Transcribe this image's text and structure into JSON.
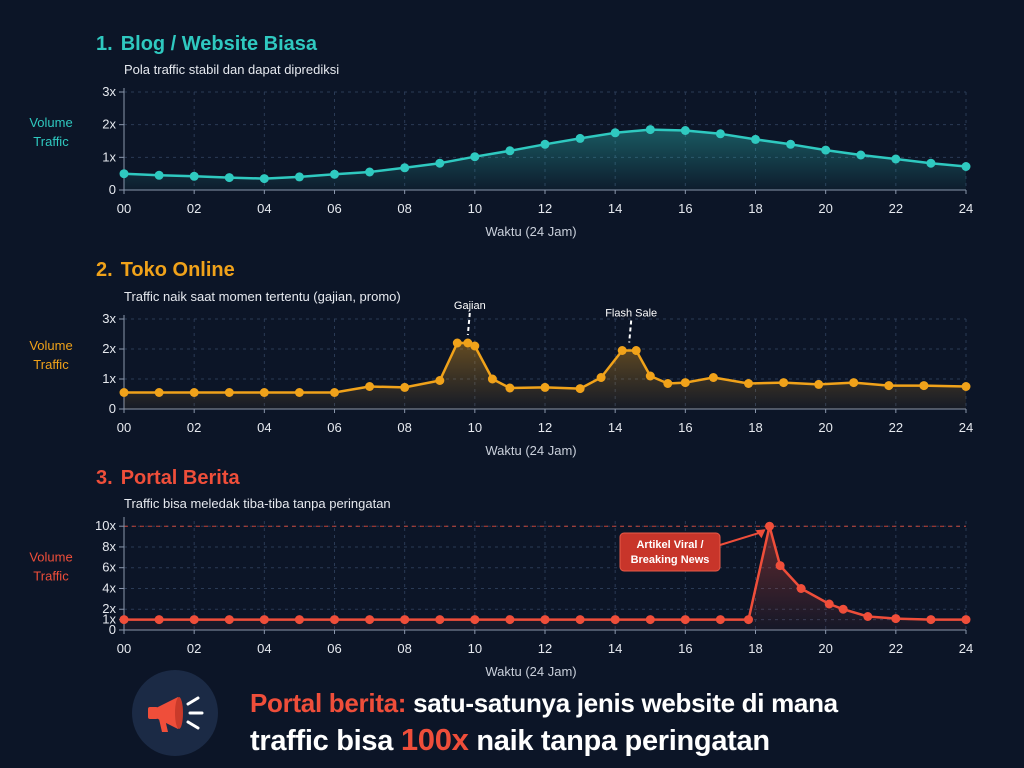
{
  "chart_data": [
    {
      "type": "line",
      "number": "1.",
      "title": "Blog / Website Biasa",
      "subtitle": "Pola traffic stabil dan dapat diprediksi",
      "ylabel": "Volume Traffic",
      "ylabel_lines": [
        "Volume",
        "Traffic"
      ],
      "xlabel": "Waktu (24 Jam)",
      "color": "#2fc9c0",
      "xlim": [
        0,
        24
      ],
      "ylim": [
        0,
        3
      ],
      "xticks": [
        "00",
        "02",
        "04",
        "06",
        "08",
        "10",
        "12",
        "14",
        "16",
        "18",
        "20",
        "22",
        "24"
      ],
      "yticks": [
        {
          "value": 0,
          "label": "0"
        },
        {
          "value": 1,
          "label": "1x"
        },
        {
          "value": 2,
          "label": "2x"
        },
        {
          "value": 3,
          "label": "3x"
        }
      ],
      "grid": true,
      "x": [
        0,
        1,
        2,
        3,
        4,
        5,
        6,
        7,
        8,
        9,
        10,
        11,
        12,
        13,
        14,
        15,
        16,
        17,
        18,
        19,
        20,
        21,
        22,
        23,
        24
      ],
      "y": [
        0.5,
        0.45,
        0.42,
        0.38,
        0.35,
        0.4,
        0.48,
        0.55,
        0.68,
        0.82,
        1.02,
        1.2,
        1.4,
        1.58,
        1.75,
        1.85,
        1.82,
        1.72,
        1.55,
        1.4,
        1.22,
        1.07,
        0.95,
        0.82,
        0.72
      ],
      "annotations": []
    },
    {
      "type": "line",
      "number": "2.",
      "title": "Toko Online",
      "subtitle": "Traffic naik saat momen tertentu (gajian, promo)",
      "ylabel": "Volume Traffic",
      "ylabel_lines": [
        "Volume",
        "Traffic"
      ],
      "xlabel": "Waktu (24 Jam)",
      "color": "#f0a21a",
      "xlim": [
        0,
        24
      ],
      "ylim": [
        0,
        3
      ],
      "xticks": [
        "00",
        "02",
        "04",
        "06",
        "08",
        "10",
        "12",
        "14",
        "16",
        "18",
        "20",
        "22",
        "24"
      ],
      "yticks": [
        {
          "value": 0,
          "label": "0"
        },
        {
          "value": 1,
          "label": "1x"
        },
        {
          "value": 2,
          "label": "2x"
        },
        {
          "value": 3,
          "label": "3x"
        }
      ],
      "grid": true,
      "x": [
        0,
        1,
        2,
        3,
        4,
        5,
        6,
        7,
        8,
        9,
        9.5,
        9.8,
        10,
        10.5,
        11,
        12,
        13,
        13.6,
        14.2,
        14.6,
        15,
        15.5,
        16,
        16.8,
        17.8,
        18.8,
        19.8,
        20.8,
        21.8,
        22.8,
        24
      ],
      "y": [
        0.55,
        0.55,
        0.55,
        0.55,
        0.55,
        0.55,
        0.55,
        0.75,
        0.72,
        0.95,
        2.2,
        2.2,
        2.1,
        1.0,
        0.7,
        0.72,
        0.68,
        1.05,
        1.95,
        1.95,
        1.1,
        0.85,
        0.88,
        1.05,
        0.85,
        0.88,
        0.82,
        0.88,
        0.78,
        0.78,
        0.75
      ],
      "annotations": [
        {
          "label": "Gajian",
          "x": 9.8,
          "y": 2.2,
          "style": "dashed"
        },
        {
          "label": "Flash Sale",
          "x": 14.4,
          "y": 1.95,
          "style": "dashed"
        }
      ]
    },
    {
      "type": "line",
      "number": "3.",
      "title": "Portal Berita",
      "subtitle": "Traffic bisa meledak tiba-tiba tanpa peringatan",
      "ylabel": "Volume Traffic",
      "ylabel_lines": [
        "Volume",
        "Traffic"
      ],
      "xlabel": "Waktu (24 Jam)",
      "color": "#ef4e3a",
      "xlim": [
        0,
        24
      ],
      "ylim": [
        0,
        10.5
      ],
      "xticks": [
        "00",
        "02",
        "04",
        "06",
        "08",
        "10",
        "12",
        "14",
        "16",
        "18",
        "20",
        "22",
        "24"
      ],
      "yticks": [
        {
          "value": 0,
          "label": "0"
        },
        {
          "value": 1,
          "label": "1x"
        },
        {
          "value": 2,
          "label": "2x"
        },
        {
          "value": 4,
          "label": "4x"
        },
        {
          "value": 6,
          "label": "6x"
        },
        {
          "value": 8,
          "label": "8x"
        },
        {
          "value": 10,
          "label": "10x"
        }
      ],
      "grid": true,
      "refline": 10,
      "x": [
        0,
        1,
        2,
        3,
        4,
        5,
        6,
        7,
        8,
        9,
        10,
        11,
        12,
        13,
        14,
        15,
        16,
        17,
        17.8,
        18.4,
        18.7,
        19.3,
        20.1,
        20.5,
        21.2,
        22,
        23,
        24
      ],
      "y": [
        1,
        1,
        1,
        1,
        1,
        1,
        1,
        1,
        1,
        1,
        1,
        1,
        1,
        1,
        1,
        1,
        1,
        1,
        1,
        10,
        6.2,
        4,
        2.5,
        2,
        1.3,
        1.1,
        1,
        1
      ],
      "annotations": [
        {
          "label": "Artikel Viral / Breaking News",
          "label_lines": [
            "Artikel Viral /",
            "Breaking News"
          ],
          "x": 18.4,
          "y": 10,
          "style": "box"
        }
      ]
    }
  ],
  "footer": {
    "icon": "megaphone-icon",
    "line1_accent": "Portal berita:",
    "line1_rest": " satu-satunya jenis website di mana",
    "line2_start": "traffic bisa ",
    "line2_accent": "100x",
    "line2_end": " naik tanpa peringatan"
  }
}
